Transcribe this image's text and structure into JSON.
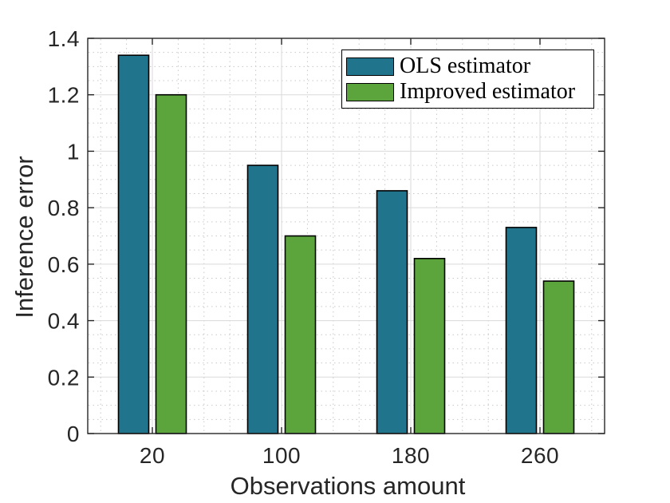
{
  "chart_data": {
    "type": "bar",
    "categories": [
      "20",
      "100",
      "180",
      "260"
    ],
    "series": [
      {
        "name": "OLS estimator",
        "color": "#20758C",
        "values": [
          1.34,
          0.95,
          0.86,
          0.73
        ]
      },
      {
        "name": "Improved estimator",
        "color": "#5BA53C",
        "values": [
          1.2,
          0.7,
          0.62,
          0.54
        ]
      }
    ],
    "title": "",
    "xlabel": "Observations amount",
    "ylabel": "Inference error",
    "ylim": [
      0,
      1.4
    ],
    "yticks": [
      0,
      0.2,
      0.4,
      0.6,
      0.8,
      1,
      1.2,
      1.4
    ],
    "ytick_labels": [
      "0",
      "0.2",
      "0.4",
      "0.6",
      "0.8",
      "1",
      "1.2",
      "1.4"
    ],
    "legend": {
      "position": "top-right",
      "border_color": "#000000",
      "background": "#ffffff"
    },
    "grid": {
      "major": true,
      "minor": true,
      "major_color": "#dadada",
      "minor_color": "#c9c9c9",
      "y_minor_step": 0.05,
      "x_minor_divisions": 5
    },
    "frame_color": "#262626",
    "tick_color": "#262626",
    "text_color": "#262626",
    "bar_edge_color": "#000000",
    "background": "#ffffff"
  }
}
